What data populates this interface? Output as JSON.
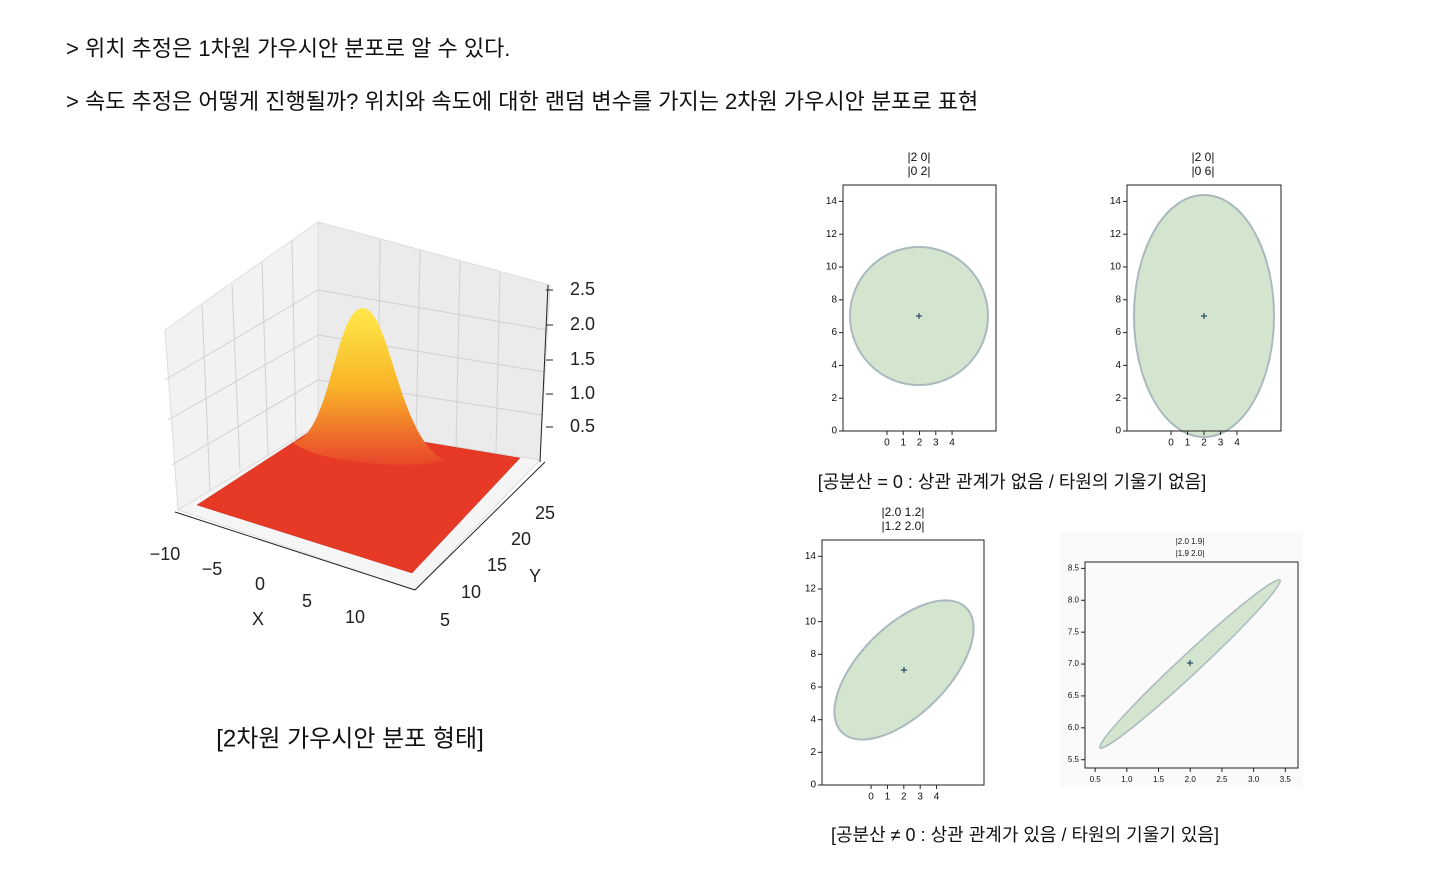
{
  "bullets": [
    "> 위치 추정은 1차원 가우시안 분포로 알 수 있다.",
    "> 속도 추정은 어떻게 진행될까? 위치와 속도에 대한 랜덤 변수를 가지는 2차원 가우시안 분포로 표현"
  ],
  "surface_plot": {
    "zticks": [
      2.5,
      {
        "value": 2,
        "label": "2.0"
      },
      1.5,
      {
        "value": 1,
        "label": "1.0"
      },
      0.5
    ],
    "xticks": [
      {
        "value": -10,
        "label": "−10"
      },
      {
        "value": -5,
        "label": "−5"
      },
      0,
      5,
      10
    ],
    "yticks": [
      5,
      10,
      15,
      20,
      25
    ],
    "xlabel": "X",
    "ylabel": "Y",
    "caption": "[2차원 가우시안 분포 형태]"
  },
  "plots": [
    {
      "title": [
        "|2 0|",
        "|0 2|"
      ],
      "xlim": [
        -2.7,
        6.7
      ],
      "ylim": [
        0,
        15
      ],
      "xticks": [
        0,
        1,
        2,
        3,
        4
      ],
      "yticks": [
        0,
        2,
        4,
        6,
        8,
        10,
        12,
        14
      ]
    },
    {
      "title": [
        "|2 0|",
        "|0 6|"
      ],
      "xlim": [
        -2.67,
        6.67
      ],
      "ylim": [
        0,
        15
      ],
      "xticks": [
        0,
        1,
        2,
        3,
        4
      ],
      "yticks": [
        0,
        2,
        4,
        6,
        8,
        10,
        12,
        14
      ]
    },
    {
      "title": [
        "|2.0 1.2|",
        "|1.2 2.0|"
      ],
      "xlim": [
        -3,
        6.9
      ],
      "ylim": [
        0,
        15
      ],
      "xticks": [
        0,
        1,
        2,
        3,
        4
      ],
      "yticks": [
        0,
        2,
        4,
        6,
        8,
        10,
        12,
        14
      ]
    },
    {
      "title": [
        "|2.0 1.9|",
        "|1.9 2.0|"
      ],
      "xlim": [
        0.34,
        3.7
      ],
      "ylim": [
        5.37,
        8.6
      ],
      "xticks": [
        0.5,
        {
          "value": 1,
          "label": "1.0"
        },
        1.5,
        {
          "value": 2,
          "label": "2.0"
        },
        2.5,
        {
          "value": 3,
          "label": "3.0"
        },
        3.5
      ],
      "yticks": [
        5.5,
        {
          "value": 6,
          "label": "6.0"
        },
        6.5,
        {
          "value": 7,
          "label": "7.0"
        },
        7.5,
        {
          "value": 8,
          "label": "8.0"
        },
        8.5
      ]
    }
  ],
  "captions": [
    "[공분산 = 0 : 상관 관계가 없음 / 타원의 기울기 없음]",
    "[공분산 ≠ 0 : 상관 관계가 있음 / 타원의 기울기 있음]"
  ]
}
